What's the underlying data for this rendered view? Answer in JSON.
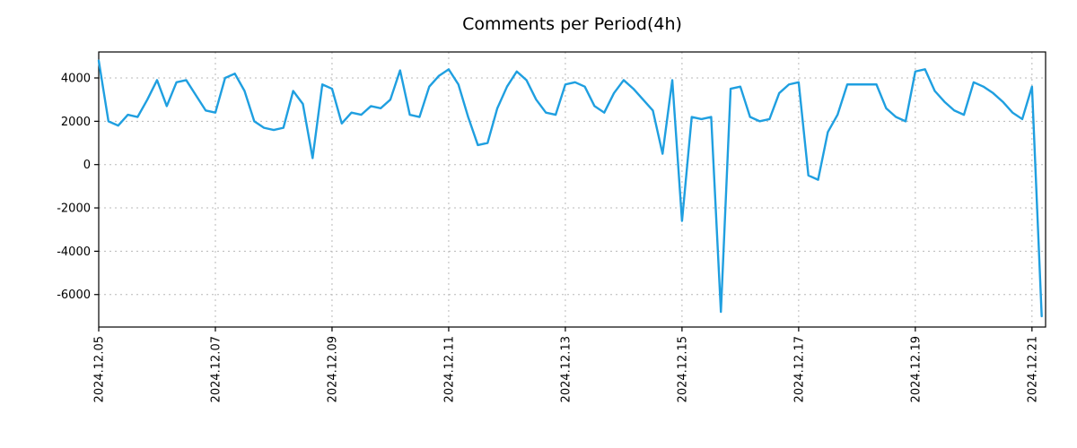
{
  "colors": {
    "line": "#1f9fe0",
    "grid": "#b8b8b8",
    "border": "#000000",
    "background": "#ffffff"
  },
  "chart_data": {
    "type": "line",
    "title": "Comments per Period(4h)",
    "xlabel": "",
    "ylabel": "",
    "legend": "none",
    "grid": true,
    "x_tick_labels": [
      "2024.12.05",
      "2024.12.07",
      "2024.12.09",
      "2024.12.11",
      "2024.12.13",
      "2024.12.15",
      "2024.12.17",
      "2024.12.19",
      "2024.12.21"
    ],
    "x_tick_positions": [
      0,
      12,
      24,
      36,
      48,
      60,
      72,
      84,
      96
    ],
    "y_ticks": [
      4000,
      2000,
      0,
      -2000,
      -4000,
      -6000
    ],
    "xlim": [
      0,
      97.4
    ],
    "ylim": [
      -7500,
      5200
    ],
    "x_unit": "4h periods since 2024.12.05",
    "values": [
      4800,
      2000,
      1800,
      2300,
      2200,
      3000,
      3900,
      2700,
      3800,
      3900,
      3200,
      2500,
      2400,
      4000,
      4200,
      3400,
      2000,
      1700,
      1600,
      1700,
      3400,
      2800,
      300,
      3700,
      3500,
      1900,
      2400,
      2300,
      2700,
      2600,
      3000,
      4350,
      2300,
      2200,
      3600,
      4100,
      4400,
      3700,
      2200,
      900,
      1000,
      2600,
      3600,
      4300,
      3900,
      3000,
      2400,
      2300,
      3700,
      3800,
      3600,
      2700,
      2400,
      3300,
      3900,
      3500,
      3000,
      2500,
      500,
      3900,
      -2600,
      2200,
      2100,
      2200,
      -6800,
      3500,
      3600,
      2200,
      2000,
      2100,
      3300,
      3700,
      3800,
      -500,
      -700,
      1500,
      2300,
      3700,
      3700,
      3700,
      3700,
      2600,
      2200,
      2000,
      4300,
      4400,
      3400,
      2900,
      2500,
      2300,
      3800,
      3600,
      3300,
      2900,
      2400,
      2100,
      3600,
      -7000
    ]
  }
}
